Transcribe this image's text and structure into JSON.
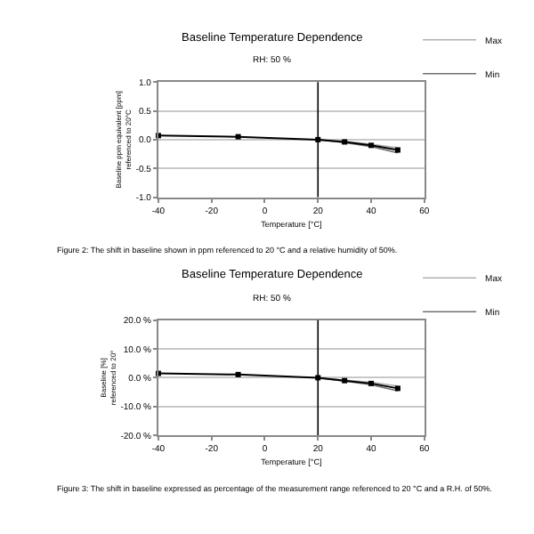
{
  "chart_data": [
    {
      "type": "line",
      "title": "Baseline Temperature Dependence",
      "subtitle": "RH: 50 %",
      "xlabel": "Temperature [°C]",
      "ylabel": "Baseline ppm equivalent [ppm]\nreferenced to 20°C",
      "series": [
        {
          "color": "#000000",
          "marker": "square",
          "x": [
            -40,
            -10,
            20,
            30,
            40,
            50
          ],
          "values": [
            0.07,
            0.05,
            0.0,
            -0.04,
            -0.1,
            -0.18
          ]
        },
        {
          "name": "Max",
          "color": "#b0b0b0",
          "marker": "none",
          "x": [
            20,
            30,
            40,
            50
          ],
          "values": [
            0.0,
            -0.03,
            -0.08,
            -0.14
          ]
        },
        {
          "name": "Min",
          "color": "#707070",
          "marker": "none",
          "x": [
            20,
            30,
            40,
            50
          ],
          "values": [
            0.0,
            -0.05,
            -0.12,
            -0.23
          ]
        }
      ],
      "xlim": [
        -40,
        60
      ],
      "xticks": [
        -40,
        -20,
        0,
        20,
        40,
        60
      ],
      "ylim": [
        -1,
        1
      ],
      "yticks": [
        {
          "value": -1,
          "label": "-1.0"
        },
        {
          "value": -0.5,
          "label": "-0.5"
        },
        {
          "value": 0,
          "label": "0.0"
        },
        {
          "value": 0.5,
          "label": "0.5"
        },
        {
          "value": 1,
          "label": "1.0"
        }
      ],
      "ref_lines": [
        {
          "axis": "x",
          "value": 20,
          "color": "#000000"
        }
      ],
      "grid": "y",
      "legend": "top right",
      "annotations": [
        "Figure 2: The shift in baseline shown in ppm referenced to 20 °C and a relative humidity of 50%."
      ]
    },
    {
      "type": "line",
      "title": "Baseline Temperature Dependence",
      "subtitle": "RH: 50 %",
      "xlabel": "Temperature [°C]",
      "ylabel": "Baseline [%]\nreferenced to 20°",
      "series": [
        {
          "color": "#000000",
          "marker": "square",
          "x": [
            -40,
            -10,
            20,
            30,
            40,
            50
          ],
          "values": [
            1.5,
            1.1,
            0.0,
            -1.0,
            -2.0,
            -3.7
          ]
        },
        {
          "name": "Max",
          "color": "#b0b0b0",
          "marker": "none",
          "x": [
            20,
            30,
            40,
            50
          ],
          "values": [
            0.0,
            -0.8,
            -1.6,
            -2.9
          ]
        },
        {
          "name": "Min",
          "color": "#707070",
          "marker": "none",
          "x": [
            20,
            30,
            40,
            50
          ],
          "values": [
            0.0,
            -1.2,
            -2.4,
            -4.6
          ]
        }
      ],
      "xlim": [
        -40,
        60
      ],
      "xticks": [
        -40,
        -20,
        0,
        20,
        40,
        60
      ],
      "ylim": [
        -20,
        20
      ],
      "yticks": [
        {
          "value": -20,
          "label": "-20.0 %"
        },
        {
          "value": -10,
          "label": "-10.0 %"
        },
        {
          "value": 0,
          "label": "0.0 %"
        },
        {
          "value": 10,
          "label": "10.0 %"
        },
        {
          "value": 20,
          "label": "20.0 %"
        }
      ],
      "ref_lines": [
        {
          "axis": "x",
          "value": 20,
          "color": "#000000"
        }
      ],
      "grid": "y",
      "legend": "top right",
      "annotations": [
        "Figure 3: The shift in baseline expressed as percentage of the measurement range referenced to 20 °C and a R.H. of 50%."
      ]
    }
  ]
}
